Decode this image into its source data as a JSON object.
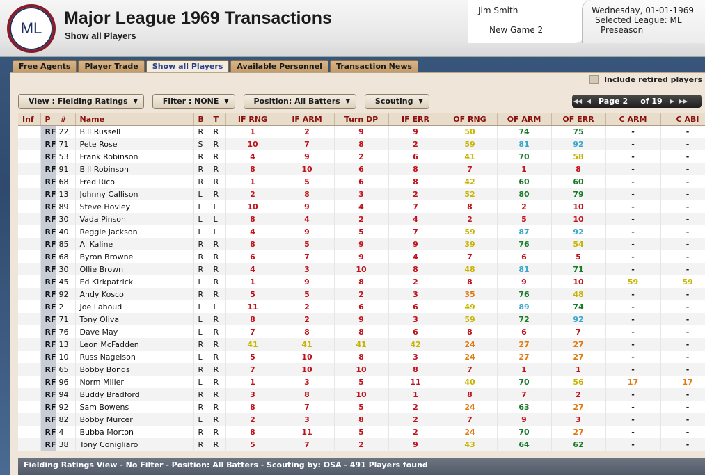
{
  "header": {
    "logo_text": "ML",
    "title": "Major League 1969 Transactions",
    "subtitle": "Show all Players",
    "user_name": "Jim Smith",
    "game_name": "New Game 2",
    "date": "Wednesday, 01-01-1969",
    "league": "Selected League: ML",
    "phase": "Preseason"
  },
  "tabs": [
    {
      "label": "Free Agents",
      "active": false
    },
    {
      "label": "Player Trade",
      "active": false
    },
    {
      "label": "Show all Players",
      "active": true
    },
    {
      "label": "Available Personnel",
      "active": false
    },
    {
      "label": "Transaction News",
      "active": false
    }
  ],
  "include_retired_label": "Include retired players",
  "toolbar": {
    "view": "View : Fielding Ratings",
    "filter": "Filter : NONE",
    "position": "Position: All Batters",
    "scouting": "Scouting"
  },
  "pager": {
    "label": "Page",
    "page": "2",
    "of": "of 19"
  },
  "columns": [
    "Inf",
    "P",
    "#",
    "Name",
    "B",
    "T",
    "IF RNG",
    "IF ARM",
    "Turn DP",
    "IF ERR",
    "OF RNG",
    "OF ARM",
    "OF ERR",
    "C ARM",
    "C ABI"
  ],
  "colors": {
    "red": "#c0121a",
    "dark_red": "#8a0c0c",
    "yellow": "#c8b400",
    "orange": "#e07a10",
    "green": "#1a7a2a",
    "blue": "#3aa6cc"
  },
  "rows": [
    [
      "",
      "RF",
      "22",
      "Bill Russell",
      "R",
      "R",
      "1",
      "2",
      "9",
      "9",
      "50",
      "74",
      "75",
      "-",
      "-"
    ],
    [
      "",
      "RF",
      "71",
      "Pete Rose",
      "S",
      "R",
      "10",
      "7",
      "8",
      "2",
      "59",
      "81",
      "92",
      "-",
      "-"
    ],
    [
      "",
      "RF",
      "53",
      "Frank Robinson",
      "R",
      "R",
      "4",
      "9",
      "2",
      "6",
      "41",
      "70",
      "58",
      "-",
      "-"
    ],
    [
      "",
      "RF",
      "91",
      "Bill Robinson",
      "R",
      "R",
      "8",
      "10",
      "6",
      "8",
      "7",
      "1",
      "8",
      "-",
      "-"
    ],
    [
      "",
      "RF",
      "68",
      "Fred Rico",
      "R",
      "R",
      "1",
      "5",
      "6",
      "8",
      "42",
      "60",
      "60",
      "-",
      "-"
    ],
    [
      "",
      "RF",
      "13",
      "Johnny Callison",
      "L",
      "R",
      "2",
      "8",
      "3",
      "2",
      "52",
      "80",
      "79",
      "-",
      "-"
    ],
    [
      "",
      "RF",
      "89",
      "Steve Hovley",
      "L",
      "L",
      "10",
      "9",
      "4",
      "7",
      "8",
      "2",
      "10",
      "-",
      "-"
    ],
    [
      "",
      "RF",
      "30",
      "Vada Pinson",
      "L",
      "L",
      "8",
      "4",
      "2",
      "4",
      "2",
      "5",
      "10",
      "-",
      "-"
    ],
    [
      "",
      "RF",
      "40",
      "Reggie Jackson",
      "L",
      "L",
      "4",
      "9",
      "5",
      "7",
      "59",
      "87",
      "92",
      "-",
      "-"
    ],
    [
      "",
      "RF",
      "85",
      "Al Kaline",
      "R",
      "R",
      "8",
      "5",
      "9",
      "9",
      "39",
      "76",
      "54",
      "-",
      "-"
    ],
    [
      "",
      "RF",
      "68",
      "Byron Browne",
      "R",
      "R",
      "6",
      "7",
      "9",
      "4",
      "7",
      "6",
      "5",
      "-",
      "-"
    ],
    [
      "",
      "RF",
      "30",
      "Ollie Brown",
      "R",
      "R",
      "4",
      "3",
      "10",
      "8",
      "48",
      "81",
      "71",
      "-",
      "-"
    ],
    [
      "",
      "RF",
      "45",
      "Ed Kirkpatrick",
      "L",
      "R",
      "1",
      "9",
      "8",
      "2",
      "8",
      "9",
      "10",
      "59",
      "59"
    ],
    [
      "",
      "RF",
      "92",
      "Andy Kosco",
      "R",
      "R",
      "5",
      "5",
      "2",
      "3",
      "35",
      "76",
      "48",
      "-",
      "-"
    ],
    [
      "",
      "RF",
      "2",
      "Joe Lahoud",
      "L",
      "L",
      "11",
      "2",
      "6",
      "6",
      "49",
      "89",
      "74",
      "-",
      "-"
    ],
    [
      "",
      "RF",
      "71",
      "Tony Oliva",
      "L",
      "R",
      "8",
      "2",
      "9",
      "3",
      "59",
      "72",
      "92",
      "-",
      "-"
    ],
    [
      "",
      "RF",
      "76",
      "Dave May",
      "L",
      "R",
      "7",
      "8",
      "8",
      "6",
      "8",
      "6",
      "7",
      "-",
      "-"
    ],
    [
      "",
      "RF",
      "13",
      "Leon McFadden",
      "R",
      "R",
      "41",
      "41",
      "41",
      "42",
      "24",
      "27",
      "27",
      "-",
      "-"
    ],
    [
      "",
      "RF",
      "10",
      "Russ Nagelson",
      "L",
      "R",
      "5",
      "10",
      "8",
      "3",
      "24",
      "27",
      "27",
      "-",
      "-"
    ],
    [
      "",
      "RF",
      "65",
      "Bobby Bonds",
      "R",
      "R",
      "7",
      "10",
      "10",
      "8",
      "7",
      "1",
      "1",
      "-",
      "-"
    ],
    [
      "",
      "RF",
      "96",
      "Norm Miller",
      "L",
      "R",
      "1",
      "3",
      "5",
      "11",
      "40",
      "70",
      "56",
      "17",
      "17"
    ],
    [
      "",
      "RF",
      "94",
      "Buddy Bradford",
      "R",
      "R",
      "3",
      "8",
      "10",
      "1",
      "8",
      "7",
      "2",
      "-",
      "-"
    ],
    [
      "",
      "RF",
      "92",
      "Sam Bowens",
      "R",
      "R",
      "8",
      "7",
      "5",
      "2",
      "24",
      "63",
      "27",
      "-",
      "-"
    ],
    [
      "",
      "RF",
      "82",
      "Bobby Murcer",
      "L",
      "R",
      "2",
      "3",
      "8",
      "2",
      "7",
      "9",
      "3",
      "-",
      "-"
    ],
    [
      "",
      "RF",
      "4",
      "Bubba Morton",
      "R",
      "R",
      "8",
      "11",
      "5",
      "2",
      "24",
      "70",
      "27",
      "-",
      "-"
    ],
    [
      "",
      "RF",
      "38",
      "Tony Conigliaro",
      "R",
      "R",
      "5",
      "7",
      "2",
      "9",
      "43",
      "64",
      "62",
      "-",
      "-"
    ]
  ],
  "status": "Fielding Ratings View - No Filter - Position: All Batters - Scouting by: OSA - 491 Players found"
}
